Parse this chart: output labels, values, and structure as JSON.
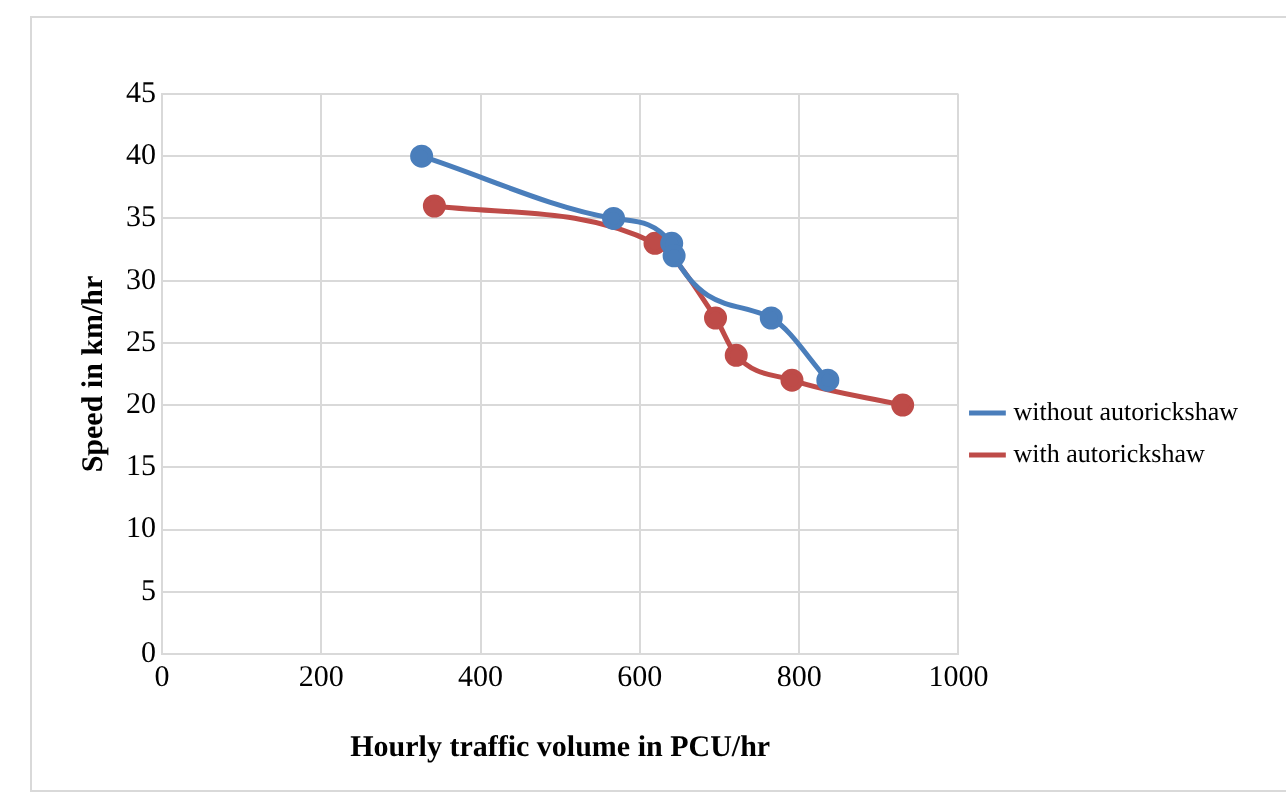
{
  "chart_data": {
    "type": "line",
    "xlabel": "Hourly traffic volume in PCU/hr",
    "ylabel": "Speed in km/hr",
    "xlim": [
      0,
      1000
    ],
    "xticks": [
      0,
      200,
      400,
      600,
      800,
      1000
    ],
    "ylim": [
      0,
      45
    ],
    "yticks": [
      0,
      5,
      10,
      15,
      20,
      25,
      30,
      35,
      40,
      45
    ],
    "grid": true,
    "legend": "right",
    "marker": "circle",
    "line_style": "solid",
    "series": [
      {
        "name": "without autorickshaw",
        "color": "#4a7ebb",
        "x": [
          326,
          567,
          640,
          643,
          765,
          836
        ],
        "values": [
          40,
          35,
          33,
          32,
          27,
          22
        ]
      },
      {
        "name": "with autorickshaw",
        "color": "#be4b48",
        "x": [
          342,
          619,
          695,
          721,
          791,
          930
        ],
        "values": [
          36,
          33,
          27,
          24,
          22,
          20
        ]
      }
    ]
  }
}
